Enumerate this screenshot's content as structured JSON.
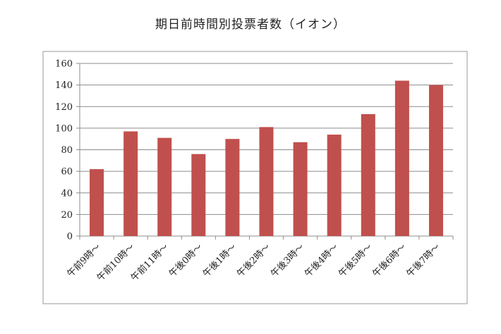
{
  "chart_data": {
    "type": "bar",
    "title": "期日前時間別投票者数（イオン）",
    "categories": [
      "午前9時〜",
      "午前10時〜",
      "午前11時〜",
      "午後0時〜",
      "午後1時〜",
      "午後2時〜",
      "午後3時〜",
      "午後4時〜",
      "午後5時〜",
      "午後6時〜",
      "午後7時〜"
    ],
    "values": [
      62,
      97,
      91,
      76,
      90,
      101,
      87,
      94,
      113,
      144,
      140
    ],
    "y_ticks": [
      "0",
      "20",
      "40",
      "60",
      "80",
      "100",
      "120",
      "140",
      "160"
    ],
    "ylim": [
      0,
      160
    ],
    "xlabel": "",
    "ylabel": "",
    "grid": true,
    "bar_color": "#c0504d",
    "grid_color": "#8c8c8c"
  }
}
